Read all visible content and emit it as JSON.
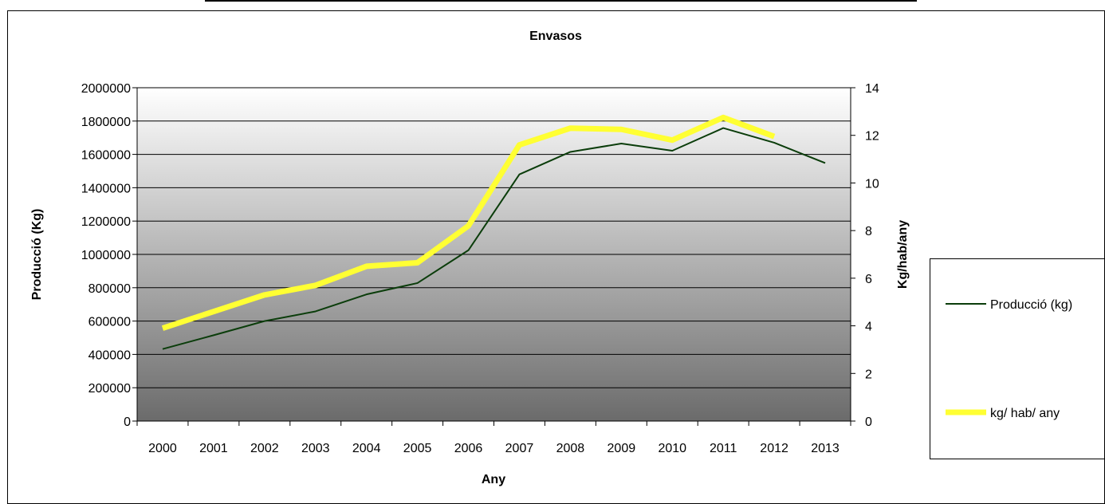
{
  "chart_data": {
    "type": "line",
    "title": "Envasos",
    "xlabel": "Any",
    "ylabel_left": "Producció (Kg)",
    "ylabel_right": "Kg/hab/any",
    "x": [
      2000,
      2001,
      2002,
      2003,
      2004,
      2005,
      2006,
      2007,
      2008,
      2009,
      2010,
      2011,
      2012,
      2013
    ],
    "ylim_left": [
      0,
      2000000
    ],
    "yticks_left": [
      0,
      200000,
      400000,
      600000,
      800000,
      1000000,
      1200000,
      1400000,
      1600000,
      1800000,
      2000000
    ],
    "ylim_right": [
      0,
      14
    ],
    "yticks_right": [
      0,
      2,
      4,
      6,
      8,
      10,
      12,
      14
    ],
    "grid": true,
    "legend_placement": "right",
    "series": [
      {
        "name": "Producció (kg)",
        "axis": "left",
        "color": "#0b3d0b",
        "values": [
          432000,
          515000,
          600000,
          658000,
          760000,
          828000,
          1025000,
          1480000,
          1615000,
          1665000,
          1622000,
          1758000,
          1670000,
          1548000
        ]
      },
      {
        "name": "kg/ hab/ any",
        "axis": "right",
        "color": "#ffff33",
        "values": [
          3.9,
          4.6,
          5.3,
          5.7,
          6.5,
          6.65,
          8.2,
          11.6,
          12.3,
          12.25,
          11.8,
          12.75,
          11.95,
          null
        ]
      }
    ]
  }
}
